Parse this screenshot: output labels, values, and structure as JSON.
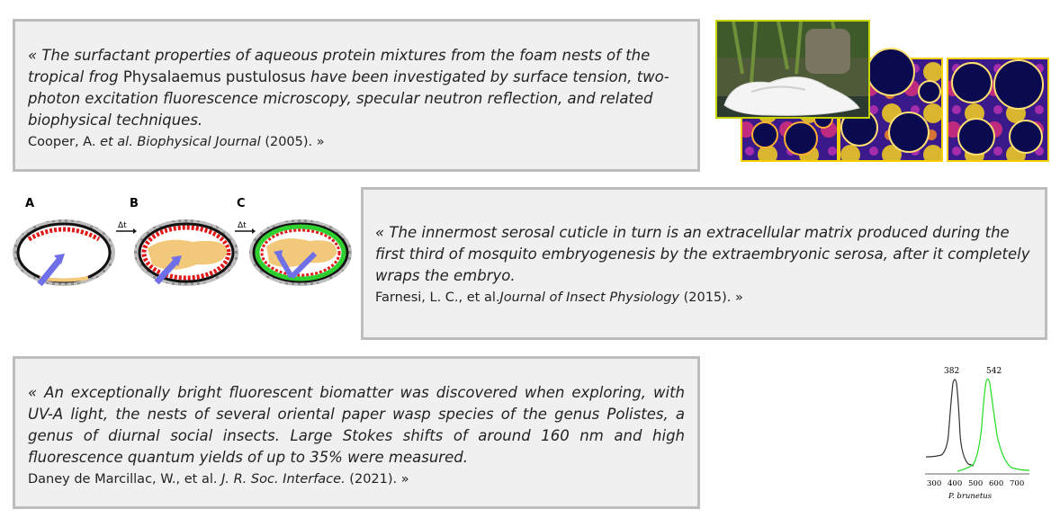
{
  "quotes": [
    {
      "before": "« The surfactant properties of aqueous protein mixtures from the foam nests of the tropical frog ",
      "upright": "Physalaemus pustulosus",
      "after": " have been investigated by surface tension, two-photon excitation fluorescence microscopy, specular neutron reflection, and related biophysical techniques.",
      "cite_author": "Cooper, A. ",
      "cite_italic": "et al. Biophysical Journal",
      "cite_end": " (2005). »"
    },
    {
      "text": "« The innermost serosal cuticle in turn is an extracellular matrix produced during the first third of mosquito embryogenesis by the extraembryonic serosa, after it completely wraps the embryo.",
      "cite_author": "Farnesi, L. C., et al.",
      "cite_italic": "Journal of Insect Physiology",
      "cite_end": " (2015). »"
    },
    {
      "text": "« An exceptionally bright fluorescent biomatter was discovered when exploring, with UV-A light, the nests of several oriental paper wasp species of the genus Polistes, a genus of diurnal social insects. Large Stokes shifts of around 160 nm and high fluorescence quantum yields of up to 35% were measured.",
      "cite_author": "Daney de Marcillac, W., et al. ",
      "cite_italic": "J. R. Soc. Interface.",
      "cite_end": " (2021). »"
    }
  ],
  "embryo_figure": {
    "panel_labels": [
      "A",
      "B",
      "C"
    ],
    "step_label": "Δt"
  },
  "spectrum_figure": {
    "peak_labels": [
      "382",
      "542"
    ],
    "x_ticks": [
      "300",
      "400",
      "500",
      "600",
      "700"
    ],
    "caption": "P. brunetus",
    "colors": {
      "excitation": "#333333",
      "emission": "#22dd22"
    }
  }
}
